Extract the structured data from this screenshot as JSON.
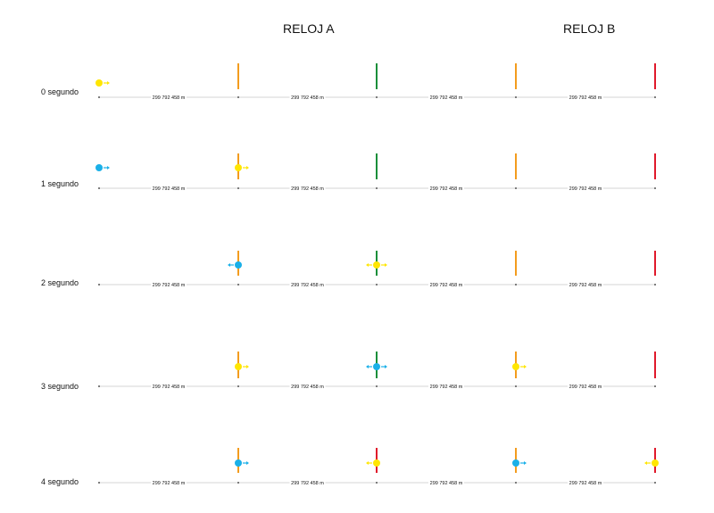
{
  "headers": {
    "clock_a": "RELOJ A",
    "clock_b": "RELOJ B"
  },
  "distance_label": "299 792 458 m",
  "colors": {
    "orange_post": "#f39c1e",
    "green_clock": "#1a8f3a",
    "red_clock": "#e0192b",
    "yellow_photon": "#ffe600",
    "blue_photon": "#1ab0e8",
    "line": "#c8c8c8",
    "tick": "#555555"
  },
  "rows": [
    {
      "label": "0 segundo",
      "posts": [
        "orange",
        "green",
        "orange",
        "red"
      ],
      "photons": [
        {
          "color": "yellow",
          "at": 0,
          "dir": "right"
        }
      ]
    },
    {
      "label": "1 segundo",
      "posts": [
        "orange",
        "green",
        "orange",
        "red"
      ],
      "photons": [
        {
          "color": "blue",
          "at": 0,
          "dir": "right"
        },
        {
          "color": "yellow",
          "at": 1,
          "dir": "right"
        }
      ]
    },
    {
      "label": "2 segundo",
      "posts": [
        "orange",
        "green",
        "orange",
        "red"
      ],
      "photons": [
        {
          "color": "blue",
          "at": 1,
          "dir": "left"
        },
        {
          "color": "yellow",
          "at": 2,
          "dir": "both"
        }
      ]
    },
    {
      "label": "3 segundo",
      "posts": [
        "orange",
        "green",
        "orange",
        "red"
      ],
      "photons": [
        {
          "color": "yellow",
          "at": 1,
          "dir": "right"
        },
        {
          "color": "blue",
          "at": 2,
          "dir": "both"
        },
        {
          "color": "yellow",
          "at": 3,
          "dir": "right"
        }
      ]
    },
    {
      "label": "4 segundo",
      "posts": [
        "orange",
        "red",
        "orange",
        "red"
      ],
      "photons": [
        {
          "color": "blue",
          "at": 1,
          "dir": "right"
        },
        {
          "color": "yellow",
          "at": 2,
          "dir": "left"
        },
        {
          "color": "blue",
          "at": 3,
          "dir": "right"
        },
        {
          "color": "yellow",
          "at": 4,
          "dir": "left"
        }
      ]
    }
  ]
}
